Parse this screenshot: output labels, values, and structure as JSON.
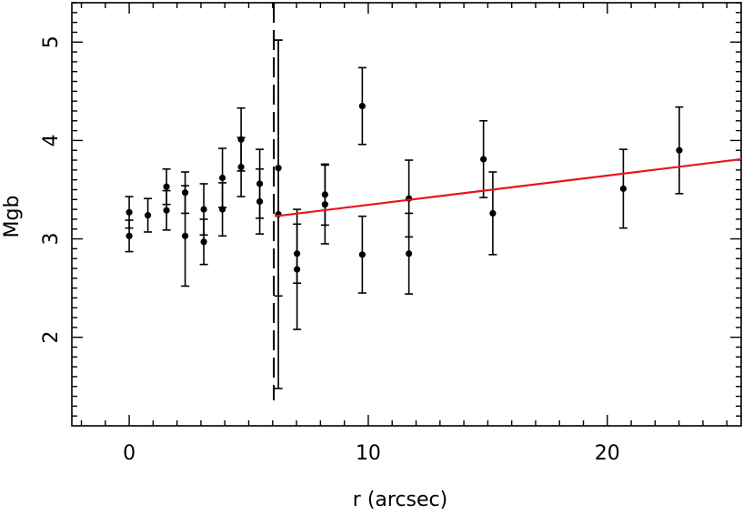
{
  "chart_data": {
    "type": "scatter",
    "title": "",
    "xlabel": "r (arcsec)",
    "ylabel": "Mgb",
    "xlim": [
      -2.4,
      25.6
    ],
    "ylim": [
      1.1,
      5.4
    ],
    "xticks": [
      0,
      10,
      20
    ],
    "yticks": [
      2,
      3,
      4,
      5
    ],
    "grid": false,
    "legend": "none",
    "colors": {
      "points": "#000000",
      "fit_line": "#e8141c",
      "frame": "#000000"
    },
    "points": [
      {
        "x": 0.0,
        "y": 3.27,
        "err": 0.16
      },
      {
        "x": 0.0,
        "y": 3.03,
        "err": 0.16
      },
      {
        "x": 0.78,
        "y": 3.24,
        "err": 0.17
      },
      {
        "x": 1.56,
        "y": 3.53,
        "err": 0.18
      },
      {
        "x": 1.56,
        "y": 3.29,
        "err": 0.2
      },
      {
        "x": 2.34,
        "y": 3.47,
        "err": 0.21
      },
      {
        "x": 2.34,
        "y": 3.03,
        "err": 0.51
      },
      {
        "x": 3.12,
        "y": 3.3,
        "err": 0.26
      },
      {
        "x": 3.12,
        "y": 2.97,
        "err": 0.23
      },
      {
        "x": 3.9,
        "y": 3.62,
        "err": 0.3
      },
      {
        "x": 3.9,
        "y": 3.3,
        "err": 0.27
      },
      {
        "x": 4.68,
        "y": 4.01,
        "err": 0.32
      },
      {
        "x": 4.68,
        "y": 3.73,
        "err": 0.3
      },
      {
        "x": 5.46,
        "y": 3.56,
        "err": 0.35
      },
      {
        "x": 5.46,
        "y": 3.38,
        "err": 0.33
      },
      {
        "x": 6.24,
        "y": 3.72,
        "err": 1.3
      },
      {
        "x": 6.24,
        "y": 3.25,
        "err": 1.77
      },
      {
        "x": 7.02,
        "y": 2.85,
        "err": 0.3
      },
      {
        "x": 7.02,
        "y": 2.69,
        "err": 0.61
      },
      {
        "x": 8.19,
        "y": 3.45,
        "err": 0.31
      },
      {
        "x": 8.19,
        "y": 3.35,
        "err": 0.4
      },
      {
        "x": 9.75,
        "y": 4.35,
        "err": 0.39
      },
      {
        "x": 9.75,
        "y": 2.84,
        "err": 0.39
      },
      {
        "x": 11.7,
        "y": 3.41,
        "err": 0.39
      },
      {
        "x": 11.7,
        "y": 2.85,
        "err": 0.41
      },
      {
        "x": 14.82,
        "y": 3.81,
        "err": 0.39
      },
      {
        "x": 15.21,
        "y": 3.26,
        "err": 0.42
      },
      {
        "x": 20.67,
        "y": 3.51,
        "err": 0.4
      },
      {
        "x": 23.01,
        "y": 3.9,
        "err": 0.44
      }
    ],
    "fit_line": {
      "x": [
        6.1,
        25.6
      ],
      "y": [
        3.23,
        3.81
      ]
    },
    "vline": {
      "x": 6.05,
      "style": "dashed"
    }
  }
}
